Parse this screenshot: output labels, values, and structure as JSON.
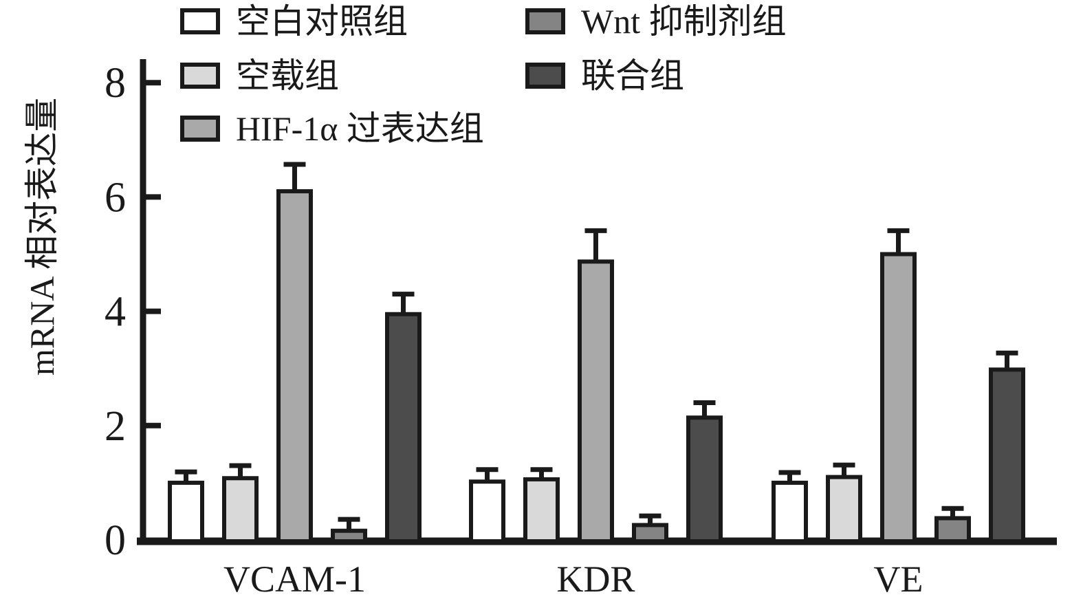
{
  "figure": {
    "background": "#ffffff",
    "ink_color": "#1a1a1a"
  },
  "chart_data": {
    "type": "bar",
    "title": "",
    "xlabel": "",
    "ylabel": "mRNA 相对表达量",
    "ylim": [
      0,
      8
    ],
    "yticks": [
      0,
      2,
      4,
      6,
      8
    ],
    "grid": false,
    "error_bars": true,
    "legend_position": "top-left, two columns",
    "categories": [
      "VCAM-1",
      "KDR",
      "VE"
    ],
    "series": [
      {
        "name": "空白对照组",
        "color": "#ffffff",
        "values": [
          1.0,
          1.02,
          1.0
        ],
        "errors": [
          0.19,
          0.21,
          0.18
        ]
      },
      {
        "name": "空载组",
        "color": "#d9d9d9",
        "values": [
          1.08,
          1.06,
          1.1
        ],
        "errors": [
          0.22,
          0.17,
          0.21
        ]
      },
      {
        "name": "HIF-1α 过表达组",
        "color": "#a9a9a9",
        "values": [
          6.1,
          4.87,
          5.0
        ],
        "errors": [
          0.47,
          0.54,
          0.41
        ]
      },
      {
        "name": "Wnt 抑制剂组",
        "color": "#848484",
        "values": [
          0.16,
          0.26,
          0.38
        ],
        "errors": [
          0.2,
          0.16,
          0.17
        ]
      },
      {
        "name": "联合组",
        "color": "#4c4c4c",
        "values": [
          3.95,
          2.14,
          2.98
        ],
        "errors": [
          0.35,
          0.26,
          0.29
        ]
      }
    ]
  }
}
